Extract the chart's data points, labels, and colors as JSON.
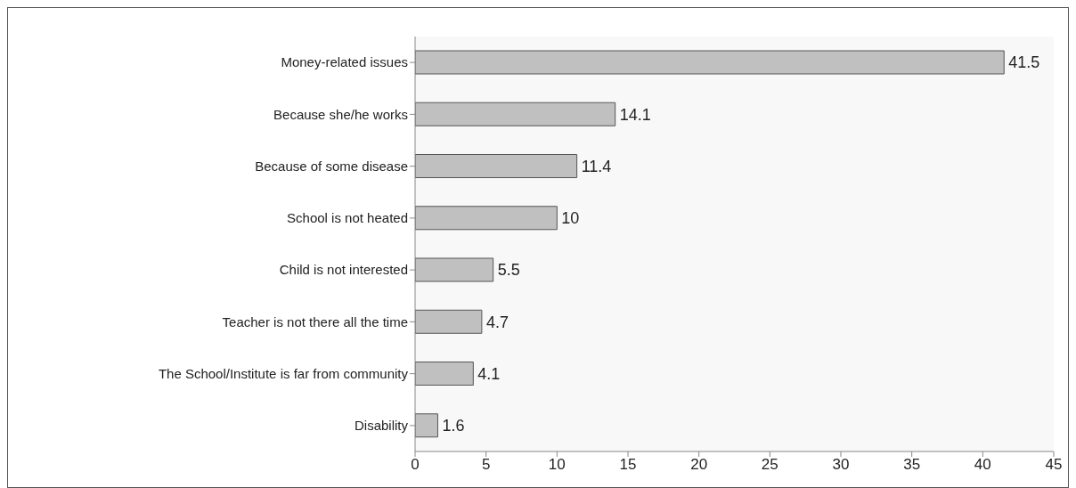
{
  "chart_data": {
    "type": "bar",
    "orientation": "horizontal",
    "categories": [
      "Money-related issues",
      "Because she/he works",
      "Because of some disease",
      "School is not heated",
      "Child is not interested",
      "Teacher is not there all the time",
      "The School/Institute is far from community",
      "Disability"
    ],
    "values": [
      41.5,
      14.1,
      11.4,
      10,
      5.5,
      4.7,
      4.1,
      1.6
    ],
    "color": "#c0c0c0",
    "xlim": [
      0,
      45
    ],
    "xticks": [
      0,
      5,
      10,
      15,
      20,
      25,
      30,
      35,
      40,
      45
    ],
    "data_labels": true,
    "grid": false
  }
}
